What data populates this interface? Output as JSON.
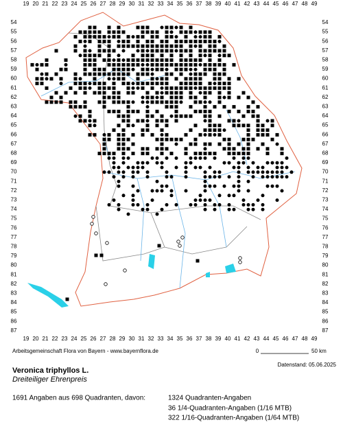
{
  "grid": {
    "columns": [
      19,
      20,
      21,
      22,
      23,
      24,
      25,
      26,
      27,
      28,
      29,
      30,
      31,
      32,
      33,
      34,
      35,
      36,
      37,
      38,
      39,
      40,
      41,
      42,
      43,
      44,
      45,
      46,
      47,
      48,
      49
    ],
    "rows": [
      54,
      55,
      56,
      57,
      58,
      59,
      60,
      61,
      62,
      63,
      64,
      65,
      66,
      67,
      68,
      69,
      70,
      71,
      72,
      73,
      74,
      75,
      76,
      77,
      78,
      79,
      80,
      81,
      82,
      83,
      84,
      85,
      86,
      87
    ]
  },
  "footer": {
    "credit": "Arbeitsgemeinschaft Flora von Bayern - www.bayernflora.de",
    "scale_start": "0",
    "scale_end": "50 km",
    "date": "Datenstand: 05.06.2025"
  },
  "species": {
    "name": "Veronica triphyllos L.",
    "common_name": "Dreiteiliger Ehrenpreis"
  },
  "summary": {
    "total": "1691 Angaben aus 698 Quadranten, davon:",
    "lines": [
      "1324 Quadranten-Angaben",
      "36 1/4-Quadranten-Angaben (1/16 MTB)",
      "322 1/16-Quadranten-Angaben (1/64 MTB)"
    ]
  }
}
